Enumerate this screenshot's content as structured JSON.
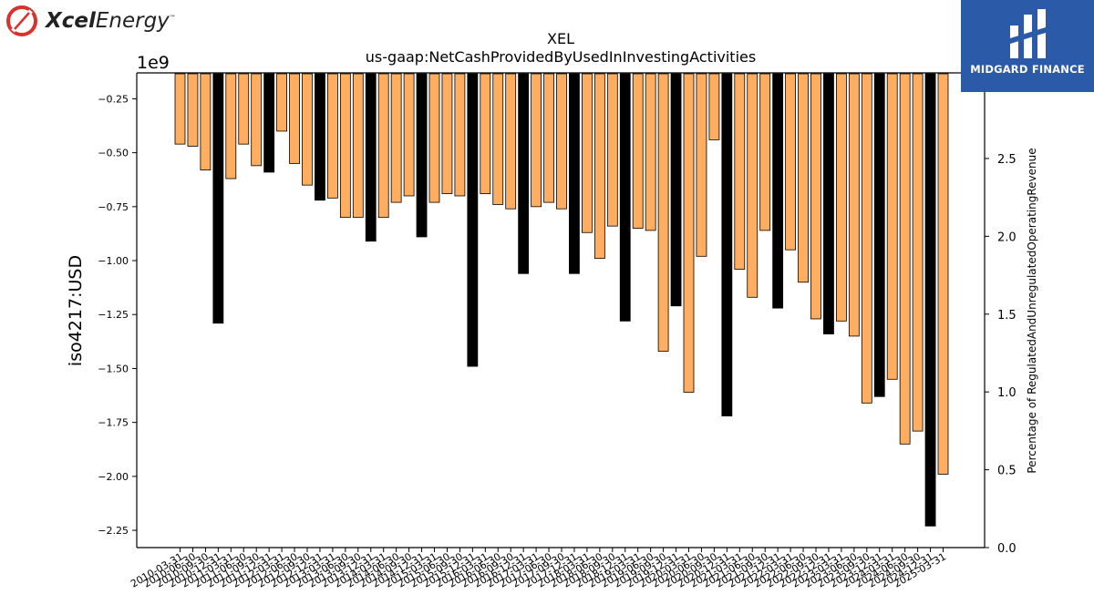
{
  "header": {
    "company_logo_bold": "Xcel",
    "company_logo_rest": "Energy",
    "company_logo_mark": "™",
    "brand_label": "MIDGARD FINANCE"
  },
  "chart_data": {
    "type": "bar",
    "title": "XEL",
    "subtitle": "us-gaap:NetCashProvidedByUsedInInvestingActivities",
    "ylabel": "iso4217:USD",
    "y2label": "Percentage of RegulatedAndUnregulatedOperatingRevenue",
    "offset_label": "1e9",
    "ylim": [
      -2.33,
      -0.13
    ],
    "y2lim": [
      0.0,
      3.05
    ],
    "yticks": [
      -0.25,
      -0.5,
      -0.75,
      -1.0,
      -1.25,
      -1.5,
      -1.75,
      -2.0,
      -2.25
    ],
    "ytick_labels": [
      "−0.25",
      "−0.50",
      "−0.75",
      "−1.00",
      "−1.25",
      "−1.50",
      "−1.75",
      "−2.00",
      "−2.25"
    ],
    "y2ticks": [
      0.0,
      0.5,
      1.0,
      1.5,
      2.0,
      2.5
    ],
    "y2tick_labels": [
      "0.0",
      "0.5",
      "1.0",
      "1.5",
      "2.0",
      "2.5"
    ],
    "colors": {
      "quarter": "#ffad60",
      "annual": "#000000"
    },
    "categories": [
      "2010-03-31",
      "2010-06-30",
      "2010-09-30",
      "2010-12-31",
      "2011-03-31",
      "2011-06-30",
      "2011-09-30",
      "2011-12-31",
      "2012-03-31",
      "2012-06-30",
      "2012-09-30",
      "2012-12-31",
      "2013-03-31",
      "2013-06-30",
      "2013-09-30",
      "2013-12-31",
      "2014-03-31",
      "2014-06-30",
      "2014-09-30",
      "2014-12-31",
      "2015-03-31",
      "2015-06-30",
      "2015-09-30",
      "2015-12-31",
      "2016-03-31",
      "2016-06-30",
      "2016-09-30",
      "2016-12-31",
      "2017-03-31",
      "2017-06-30",
      "2017-09-30",
      "2017-12-31",
      "2018-03-31",
      "2018-06-30",
      "2018-09-30",
      "2018-12-31",
      "2019-03-31",
      "2019-06-30",
      "2019-09-30",
      "2019-12-31",
      "2020-03-31",
      "2020-06-30",
      "2020-09-30",
      "2020-12-31",
      "2021-03-31",
      "2021-06-30",
      "2021-09-30",
      "2021-12-31",
      "2022-03-31",
      "2022-06-30",
      "2022-09-30",
      "2022-12-31",
      "2023-03-31",
      "2023-06-30",
      "2023-09-30",
      "2023-12-31",
      "2024-03-31",
      "2024-06-30",
      "2024-09-30",
      "2024-12-31",
      "2025-03-31"
    ],
    "visible_tick_labels": [
      "2010-03-31",
      "2010-06-30",
      "2010-09-30",
      "2010-12-31",
      "2011-03-31",
      "2011-06-30",
      "2011-09-30",
      "2011-12-31",
      "2012-03-31",
      "2012-06-30",
      "2012-09-30",
      "2012-12-31",
      "2013-03-31",
      "2013-06-30",
      "2013-09-30",
      "2013-12-31",
      "2014-03-31",
      "2014-06-30",
      "2014-09-30",
      "2014-12-31",
      "2015-03-31",
      "2015-06-30",
      "2015-09-30",
      "2015-12-31",
      "2016-03-31",
      "2016-06-30",
      "2016-09-30",
      "2016-12-31",
      "2017-03-31",
      "2017-06-30",
      "2017-09-30",
      "2017-12-31",
      "2018-03-31",
      "2018-06-30",
      "2018-09-30",
      "2018-12-31",
      "2019-03-31",
      "2019-06-30",
      "2019-09-30",
      "2019-12-31",
      "2020-03-31",
      "2020-06-30",
      "2020-09-30",
      "2020-12-31",
      "2021-03-31",
      "2021-06-30",
      "2021-09-30",
      "2021-12-31",
      "2022-03-31",
      "2022-06-30",
      "2022-09-30",
      "2022-12-31",
      "2023-03-31",
      "2023-06-30",
      "2023-09-30",
      "2023-12-31",
      "2024-03-31",
      "2024-06-30",
      "2024-09-30",
      "2024-12-31",
      "2025-03-31"
    ],
    "values": [
      -0.46,
      -0.47,
      -0.58,
      -1.29,
      -0.62,
      -0.46,
      -0.56,
      -0.59,
      -0.4,
      -0.55,
      -0.65,
      -0.72,
      -0.71,
      -0.8,
      -0.8,
      -0.91,
      -0.8,
      -0.73,
      -0.7,
      -0.89,
      -0.73,
      -0.69,
      -0.7,
      -1.49,
      -0.69,
      -0.74,
      -0.76,
      -1.06,
      -0.75,
      -0.73,
      -0.76,
      -1.06,
      -0.87,
      -0.99,
      -0.84,
      -1.28,
      -0.85,
      -0.86,
      -1.42,
      -1.21,
      -1.61,
      -0.98,
      -0.44,
      -1.72,
      -1.04,
      -1.17,
      -0.86,
      -1.22,
      -0.95,
      -1.1,
      -1.27,
      -1.34,
      -1.28,
      -1.35,
      -1.66,
      -1.63,
      -1.55,
      -1.85,
      -1.79,
      -2.23,
      -1.99
    ],
    "annual_flags": [
      0,
      0,
      0,
      1,
      0,
      0,
      0,
      1,
      0,
      0,
      0,
      1,
      0,
      0,
      0,
      1,
      0,
      0,
      0,
      1,
      0,
      0,
      0,
      1,
      0,
      0,
      0,
      1,
      0,
      0,
      0,
      1,
      0,
      0,
      0,
      1,
      0,
      0,
      0,
      1,
      0,
      0,
      0,
      1,
      0,
      0,
      0,
      1,
      0,
      0,
      0,
      1,
      0,
      0,
      0,
      1,
      0,
      0,
      0,
      1,
      0
    ]
  }
}
